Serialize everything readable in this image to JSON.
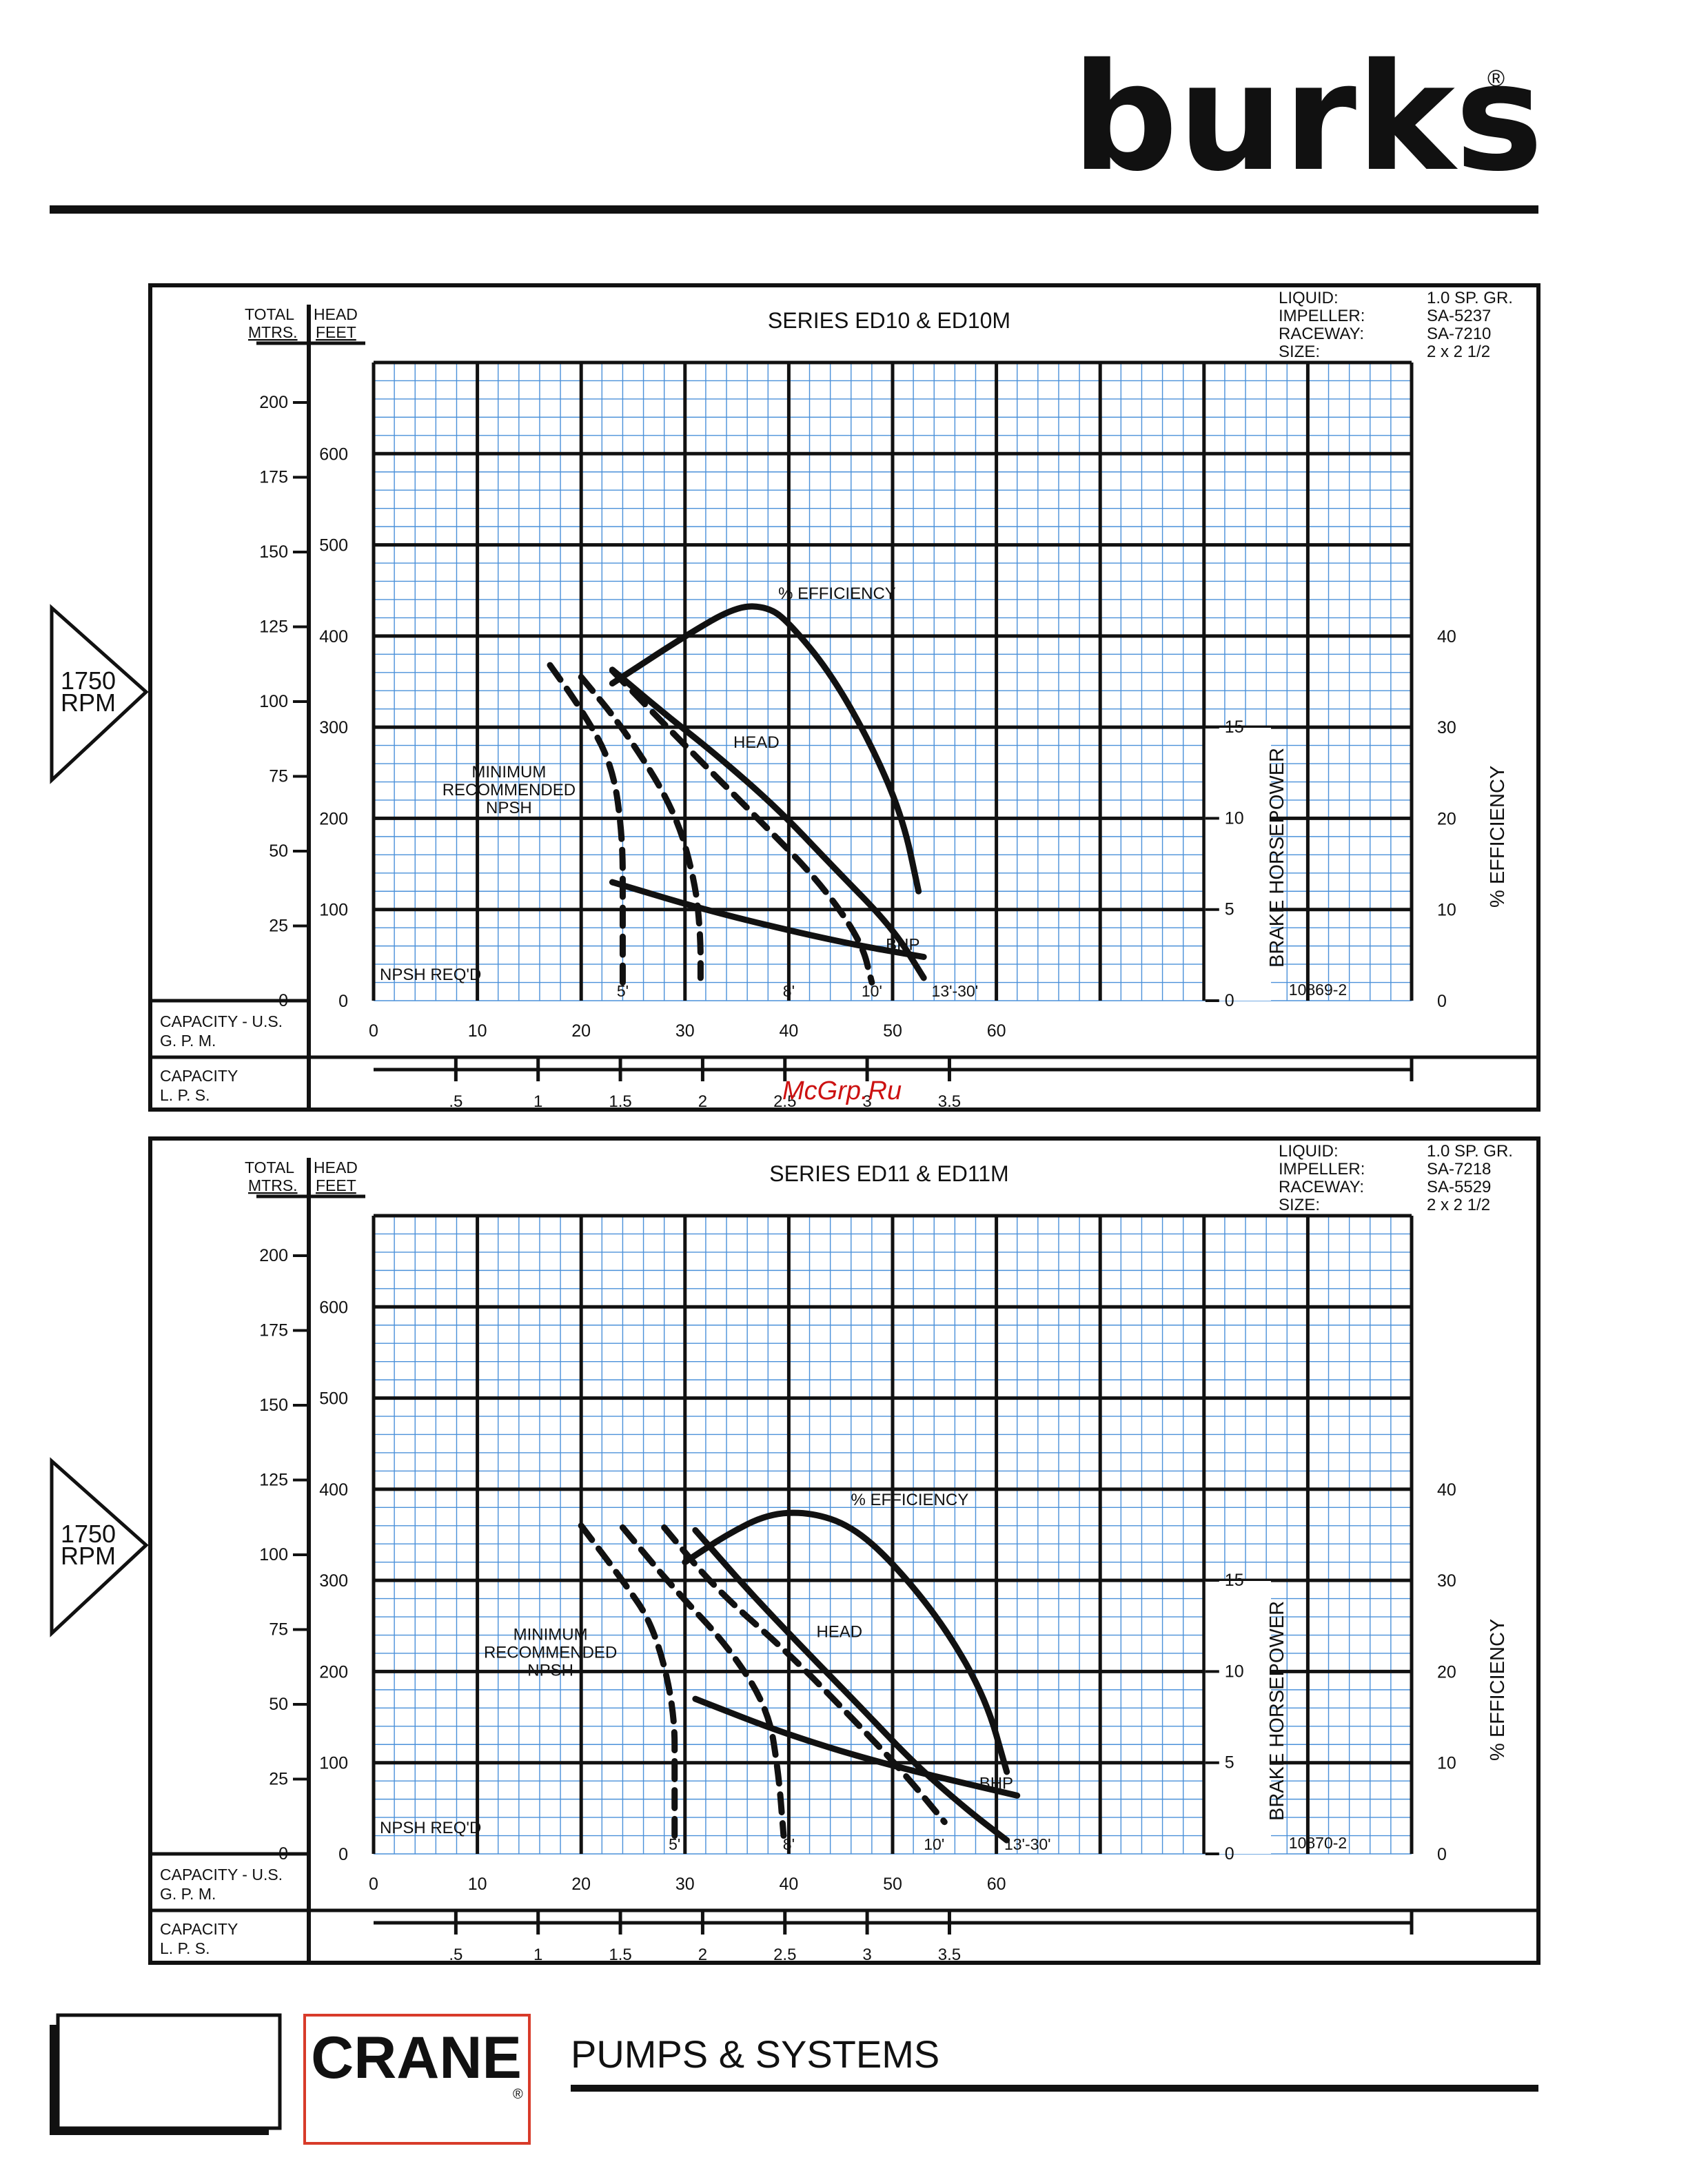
{
  "header": {
    "brand": "burks",
    "registered_mark": "®",
    "watermark": "McGrp.Ru"
  },
  "footer": {
    "logo_text": "CRANE",
    "logo_mark": "®",
    "tagline": "PUMPS & SYSTEMS"
  },
  "colors": {
    "grid_fine": "#4a90d9",
    "grid_major": "#111111",
    "ink": "#111111",
    "background": "#ffffff"
  },
  "chart_data": [
    {
      "type": "line",
      "title": "SERIES  ED10 & ED10M",
      "speed": "1750\nRPM",
      "specs": [
        {
          "label": "LIQUID:",
          "value": "1.0 SP. GR."
        },
        {
          "label": "IMPELLER:",
          "value": "SA-5237"
        },
        {
          "label": "RACEWAY:",
          "value": "SA-7210"
        },
        {
          "label": "SIZE:",
          "value": "2 x 2 1/2"
        }
      ],
      "drawing_no": "10869-2",
      "axis_labels": {
        "total_head": "TOTAL",
        "head": "HEAD",
        "mtrs": "MTRS.",
        "feet": "FEET",
        "gpm": "CAPACITY - U.S.\nG. P. M.",
        "lps": "CAPACITY\nL. P. S.",
        "bhp": "BRAKE HORSEPOWER",
        "efficiency": "%  EFFICIENCY"
      },
      "x_ticks": [
        "0",
        "10",
        "20",
        "30",
        "40",
        "50",
        "60"
      ],
      "lps_ticks": [
        ".5",
        "1",
        "1.5",
        "2",
        "2.5",
        "3",
        "3.5"
      ],
      "feet_ticks": [
        "0",
        "100",
        "200",
        "300",
        "400",
        "500",
        "600"
      ],
      "mtrs_ticks": [
        "0",
        "25",
        "50",
        "75",
        "100",
        "125",
        "150",
        "175",
        "200"
      ],
      "bhp_ticks": [
        "0",
        "5",
        "10",
        "15"
      ],
      "eff_ticks": [
        "0",
        "10",
        "20",
        "30",
        "40"
      ],
      "xlim": [
        0,
        100
      ],
      "ylim_feet": [
        0,
        700
      ],
      "annotations": {
        "efficiency": "% EFFICIENCY",
        "head": "HEAD",
        "bhp": "BHP",
        "npsh": "MINIMUM\nRECOMMENDED\nNPSH",
        "npsh_req": "NPSH REQ'D"
      },
      "series": [
        {
          "name": "% EFFICIENCY",
          "style": "solid",
          "points": [
            [
              23,
              348
            ],
            [
              30,
              400
            ],
            [
              35,
              433
            ],
            [
              38,
              432
            ],
            [
              40,
              415
            ],
            [
              44,
              360
            ],
            [
              48,
              280
            ],
            [
              51,
              200
            ],
            [
              52.5,
              120
            ]
          ]
        },
        {
          "name": "HEAD",
          "style": "solid",
          "points": [
            [
              23,
              363
            ],
            [
              28,
              315
            ],
            [
              33,
              270
            ],
            [
              39,
              210
            ],
            [
              44,
              150
            ],
            [
              50,
              80
            ],
            [
              53,
              25
            ]
          ]
        },
        {
          "name": "BHP",
          "style": "solid",
          "bhp_scale": true,
          "points": [
            [
              23,
              6.5
            ],
            [
              33,
              4.8
            ],
            [
              45,
              3.2
            ],
            [
              53,
              2.4
            ]
          ]
        },
        {
          "name": "NPSH 5'",
          "style": "dashed",
          "label": "5'",
          "points": [
            [
              17,
              368
            ],
            [
              20,
              320
            ],
            [
              23,
              260
            ],
            [
              24,
              180
            ],
            [
              24,
              100
            ],
            [
              24,
              20
            ]
          ]
        },
        {
          "name": "NPSH 8'",
          "style": "dashed",
          "label": "8'",
          "points": [
            [
              20,
              355
            ],
            [
              24,
              300
            ],
            [
              29,
              210
            ],
            [
              31,
              130
            ],
            [
              31.5,
              70
            ],
            [
              31.5,
              25
            ]
          ]
        },
        {
          "name": "NPSH 10'",
          "style": "dashed",
          "label": "10'",
          "points": [
            [
              23,
              362
            ],
            [
              30,
              280
            ],
            [
              37,
              200
            ],
            [
              43,
              130
            ],
            [
              47,
              65
            ],
            [
              48,
              20
            ]
          ]
        },
        {
          "name": "NPSH 13'-30'",
          "label": "13'-30'",
          "style": "none",
          "points": []
        }
      ],
      "npsh_labels": [
        [
          24,
          "5'"
        ],
        [
          40,
          "8'"
        ],
        [
          48,
          "10'"
        ],
        [
          56,
          "13'-30'"
        ]
      ]
    },
    {
      "type": "line",
      "title": "SERIES  ED11 & ED11M",
      "speed": "1750\nRPM",
      "specs": [
        {
          "label": "LIQUID:",
          "value": "1.0 SP. GR."
        },
        {
          "label": "IMPELLER:",
          "value": "SA-7218"
        },
        {
          "label": "RACEWAY:",
          "value": "SA-5529"
        },
        {
          "label": "SIZE:",
          "value": "2 x 2 1/2"
        }
      ],
      "drawing_no": "10870-2",
      "axis_labels": {
        "total_head": "TOTAL",
        "head": "HEAD",
        "mtrs": "MTRS.",
        "feet": "FEET",
        "gpm": "CAPACITY - U.S.\nG. P. M.",
        "lps": "CAPACITY\nL. P. S.",
        "bhp": "BRAKE HORSEPOWER",
        "efficiency": "%  EFFICIENCY"
      },
      "x_ticks": [
        "0",
        "10",
        "20",
        "30",
        "40",
        "50",
        "60"
      ],
      "lps_ticks": [
        ".5",
        "1",
        "1.5",
        "2",
        "2.5",
        "3",
        "3.5"
      ],
      "feet_ticks": [
        "0",
        "100",
        "200",
        "300",
        "400",
        "500",
        "600"
      ],
      "mtrs_ticks": [
        "0",
        "25",
        "50",
        "75",
        "100",
        "125",
        "150",
        "175",
        "200"
      ],
      "bhp_ticks": [
        "0",
        "5",
        "10",
        "15"
      ],
      "eff_ticks": [
        "0",
        "10",
        "20",
        "30",
        "40"
      ],
      "xlim": [
        0,
        100
      ],
      "ylim_feet": [
        0,
        700
      ],
      "annotations": {
        "efficiency": "% EFFICIENCY",
        "head": "HEAD",
        "bhp": "BHP",
        "npsh": "MINIMUM\nRECOMMENDED\nNPSH",
        "npsh_req": "NPSH REQ'D"
      },
      "series": [
        {
          "name": "% EFFICIENCY",
          "style": "solid",
          "points": [
            [
              30,
              320
            ],
            [
              34,
              350
            ],
            [
              38,
              373
            ],
            [
              42,
              375
            ],
            [
              46,
              360
            ],
            [
              50,
              320
            ],
            [
              55,
              250
            ],
            [
              59,
              170
            ],
            [
              61,
              90
            ]
          ]
        },
        {
          "name": "HEAD",
          "style": "solid",
          "points": [
            [
              31,
              355
            ],
            [
              36,
              290
            ],
            [
              41,
              230
            ],
            [
              47,
              160
            ],
            [
              52,
              100
            ],
            [
              57,
              50
            ],
            [
              61,
              15
            ]
          ]
        },
        {
          "name": "BHP",
          "style": "solid",
          "bhp_scale": true,
          "points": [
            [
              31,
              8.5
            ],
            [
              40,
              6.5
            ],
            [
              50,
              4.8
            ],
            [
              62,
              3.2
            ]
          ]
        },
        {
          "name": "NPSH 5'",
          "style": "dashed",
          "label": "5'",
          "points": [
            [
              20,
              360
            ],
            [
              24,
              300
            ],
            [
              27,
              250
            ],
            [
              29,
              160
            ],
            [
              29,
              80
            ],
            [
              29,
              20
            ]
          ]
        },
        {
          "name": "NPSH 8'",
          "style": "dashed",
          "label": "8'",
          "points": [
            [
              24,
              358
            ],
            [
              29,
              290
            ],
            [
              34,
              230
            ],
            [
              38,
              160
            ],
            [
              39,
              90
            ],
            [
              39.5,
              20
            ]
          ]
        },
        {
          "name": "NPSH 10'",
          "style": "dashed",
          "label": "10'",
          "points": [
            [
              28,
              358
            ],
            [
              33,
              290
            ],
            [
              40,
              220
            ],
            [
              46,
              150
            ],
            [
              51,
              90
            ],
            [
              55,
              35
            ]
          ]
        }
      ],
      "npsh_labels": [
        [
          29,
          "5'"
        ],
        [
          40,
          "8'"
        ],
        [
          54,
          "10'"
        ],
        [
          63,
          "13'-30'"
        ]
      ]
    }
  ]
}
